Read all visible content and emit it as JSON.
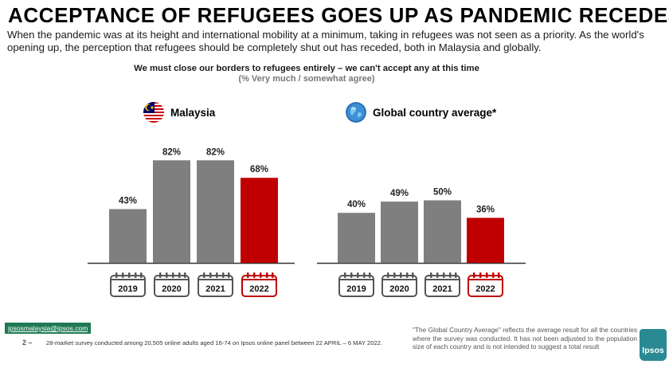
{
  "title": "ACCEPTANCE OF REFUGEES GOES UP AS PANDEMIC RECEDES",
  "subtitle": "When the pandemic was at its height and international mobility at a minimum, taking in refugees was not seen as a priority. As the world's opening up, the perception that refugees should be completely shut out has receded, both in Malaysia and globally.",
  "question": "We must close our borders to refugees entirely – we can't accept any at this time",
  "question_sub": "(% Very much / somewhat agree)",
  "colors": {
    "grey_bar": "#7f7f7f",
    "highlight_bar": "#c00000",
    "axis": "#333333"
  },
  "chart_data": [
    {
      "type": "bar",
      "title": "Malaysia",
      "icon": "malaysia-flag-icon",
      "categories": [
        "2019",
        "2020",
        "2021",
        "2022"
      ],
      "values": [
        43,
        82,
        82,
        68
      ],
      "labels": [
        "43%",
        "82%",
        "82%",
        "68%"
      ],
      "highlight": "2022",
      "ylim": [
        0,
        100
      ]
    },
    {
      "type": "bar",
      "title": "Global country average*",
      "icon": "globe-icon",
      "categories": [
        "2019",
        "2020",
        "2021",
        "2022"
      ],
      "values": [
        40,
        49,
        50,
        36
      ],
      "labels": [
        "40%",
        "49%",
        "50%",
        "36%"
      ],
      "highlight": "2022",
      "ylim": [
        0,
        100
      ]
    }
  ],
  "footer": {
    "email": "ipsosmalaysia@ipsos.com",
    "page_number": "2 –",
    "footnote": "28-market survey conducted among 20,505 online adults aged 16-74  on Ipsos online panel between 22 APRIL – 6 MAY 2022.",
    "gca_note": "\"The Global Country Average\" reflects the average result for all the countries where the survey was conducted. It has not been adjusted to the population size of each country and is not intended to suggest a total result",
    "logo_text": "Ipsos"
  }
}
